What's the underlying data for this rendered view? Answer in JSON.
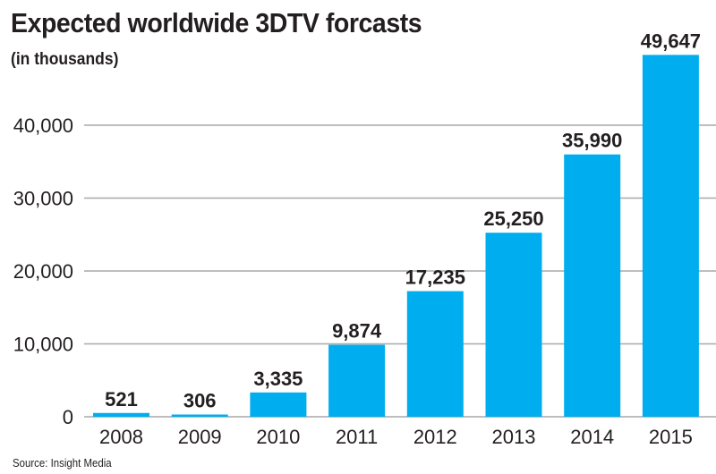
{
  "chart_data": {
    "type": "bar",
    "title": "Expected worldwide 3DTV forcasts",
    "subtitle": "(in thousands)",
    "source": "Source: Insight Media",
    "categories": [
      "2008",
      "2009",
      "2010",
      "2011",
      "2012",
      "2013",
      "2014",
      "2015"
    ],
    "values": [
      521,
      306,
      3335,
      9874,
      17235,
      25250,
      35990,
      49647
    ],
    "value_labels": [
      "521",
      "306",
      "3,335",
      "9,874",
      "17,235",
      "25,250",
      "35,990",
      "49,647"
    ],
    "yticks": [
      0,
      10000,
      20000,
      30000,
      40000
    ],
    "ytick_labels": [
      "0",
      "10,000",
      "20,000",
      "30,000",
      "40,000"
    ],
    "ylim": [
      0,
      50000
    ],
    "grid": true,
    "bar_color": "#00aeef",
    "grid_color": "#a7a9ac"
  }
}
